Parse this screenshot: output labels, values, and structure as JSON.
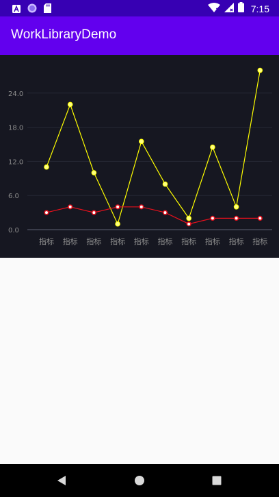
{
  "status_bar": {
    "time": "7:15",
    "left_icons": [
      "a-notification-icon",
      "circle-notification-icon",
      "sd-card-icon"
    ],
    "right_icons": [
      "wifi-icon",
      "signal-icon",
      "battery-icon"
    ]
  },
  "app_bar": {
    "title": "WorkLibraryDemo",
    "color": "#6200ee"
  },
  "colors": {
    "status_bar": "#3700b3",
    "chart_background": "#161721",
    "series_yellow": "#ffff00",
    "series_red": "#e8101c",
    "axis_text": "#8c8c8c"
  },
  "chart_data": {
    "type": "line",
    "title": "",
    "xlabel": "",
    "ylabel": "",
    "ylim": [
      0,
      24
    ],
    "y_ticks": [
      "0.0",
      "6.0",
      "12.0",
      "18.0",
      "24.0"
    ],
    "categories": [
      "指标",
      "指标",
      "指标",
      "指标",
      "指标",
      "指标",
      "指标",
      "指标",
      "指标",
      "指标"
    ],
    "grid": true,
    "legend": "none",
    "series": [
      {
        "color": "#ffff00",
        "values": [
          11,
          22,
          10,
          1,
          15.5,
          8,
          2,
          14.5,
          4,
          28
        ]
      },
      {
        "color": "#e8101c",
        "values": [
          3,
          4,
          3,
          4,
          4,
          3,
          1,
          2,
          2,
          2
        ]
      }
    ]
  },
  "nav_bar": {
    "buttons": [
      "back-icon",
      "home-icon",
      "recents-icon"
    ]
  }
}
